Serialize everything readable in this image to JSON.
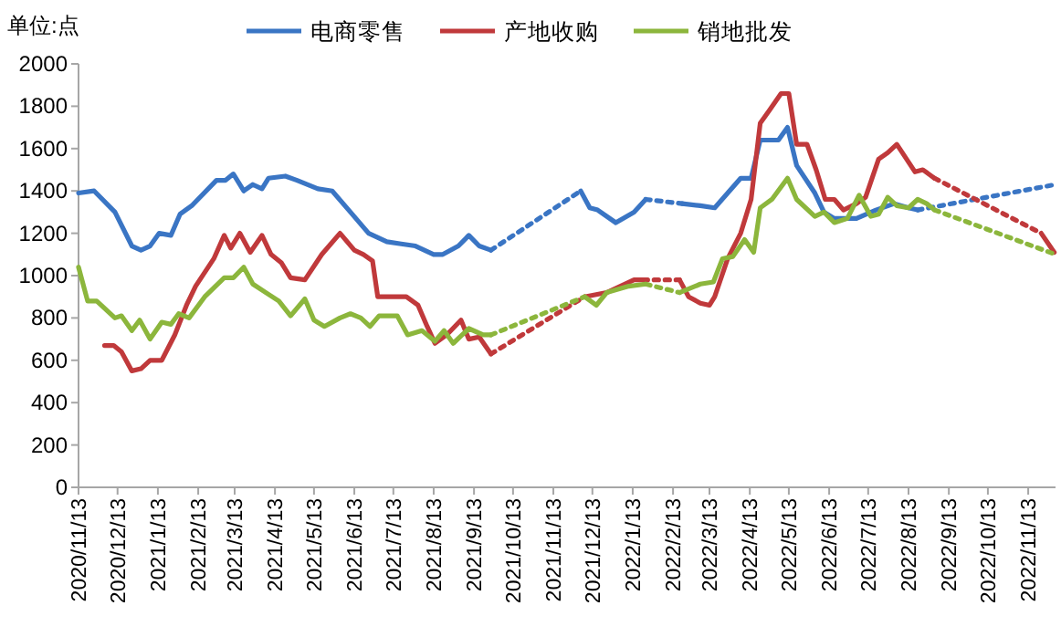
{
  "chart_data": {
    "type": "line",
    "ylabel": "单位:点",
    "legend": "top",
    "grid": false,
    "marker": "none",
    "xlim": [
      "2020-11-13",
      "2022-12-04"
    ],
    "xticks": [
      {
        "value": "2020-11-13",
        "label": "2020/11/13"
      },
      {
        "value": "2020-12-13",
        "label": "2020/12/13"
      },
      {
        "value": "2021-01-13",
        "label": "2021/1/13"
      },
      {
        "value": "2021-02-13",
        "label": "2021/2/13"
      },
      {
        "value": "2021-03-13",
        "label": "2021/3/13"
      },
      {
        "value": "2021-04-13",
        "label": "2021/4/13"
      },
      {
        "value": "2021-05-13",
        "label": "2021/5/13"
      },
      {
        "value": "2021-06-13",
        "label": "2021/6/13"
      },
      {
        "value": "2021-07-13",
        "label": "2021/7/13"
      },
      {
        "value": "2021-08-13",
        "label": "2021/8/13"
      },
      {
        "value": "2021-09-13",
        "label": "2021/9/13"
      },
      {
        "value": "2021-10-13",
        "label": "2021/10/13"
      },
      {
        "value": "2021-11-13",
        "label": "2021/11/13"
      },
      {
        "value": "2021-12-13",
        "label": "2021/12/13"
      },
      {
        "value": "2022-01-13",
        "label": "2022/1/13"
      },
      {
        "value": "2022-02-13",
        "label": "2022/2/13"
      },
      {
        "value": "2022-03-13",
        "label": "2022/3/13"
      },
      {
        "value": "2022-04-13",
        "label": "2022/4/13"
      },
      {
        "value": "2022-05-13",
        "label": "2022/5/13"
      },
      {
        "value": "2022-06-13",
        "label": "2022/6/13"
      },
      {
        "value": "2022-07-13",
        "label": "2022/7/13"
      },
      {
        "value": "2022-08-13",
        "label": "2022/8/13"
      },
      {
        "value": "2022-09-13",
        "label": "2022/9/13"
      },
      {
        "value": "2022-10-13",
        "label": "2022/10/13"
      },
      {
        "value": "2022-11-13",
        "label": "2022/11/13"
      }
    ],
    "ylim": [
      0,
      2000
    ],
    "yticks": [
      0,
      200,
      400,
      600,
      800,
      1000,
      1200,
      1400,
      1600,
      1800,
      2000
    ],
    "series": [
      {
        "name": "电商零售",
        "color": "#3a75c4",
        "line_style": "solid",
        "x": [
          "2020-11-13",
          "2020-11-25",
          "2020-12-11",
          "2020-12-24",
          "2020-12-31",
          "2021-01-07",
          "2021-01-14",
          "2021-01-23",
          "2021-01-30",
          "2021-02-08",
          "2021-02-27",
          "2021-03-06",
          "2021-03-12",
          "2021-03-20",
          "2021-03-27",
          "2021-04-03",
          "2021-04-08",
          "2021-04-21",
          "2021-04-30",
          "2021-05-16",
          "2021-05-27",
          "2021-06-10",
          "2021-06-24",
          "2021-07-08",
          "2021-07-19",
          "2021-07-30",
          "2021-08-13",
          "2021-08-20",
          "2021-09-01",
          "2021-09-09",
          "2021-09-17",
          "2021-09-26"
        ],
        "values": [
          1390,
          1400,
          1300,
          1140,
          1120,
          1140,
          1200,
          1190,
          1290,
          1330,
          1450,
          1450,
          1480,
          1400,
          1430,
          1410,
          1460,
          1470,
          1450,
          1410,
          1400,
          1300,
          1200,
          1160,
          1150,
          1140,
          1100,
          1100,
          1140,
          1190,
          1140,
          1120
        ]
      },
      {
        "color": "#3a75c4",
        "line_style": "solid",
        "x": [
          "2021-12-04",
          "2021-12-11",
          "2021-12-17",
          "2021-12-31",
          "2022-01-14",
          "2022-01-23"
        ],
        "values": [
          1400,
          1320,
          1310,
          1250,
          1300,
          1360
        ]
      },
      {
        "color": "#3a75c4",
        "line_style": "solid",
        "x": [
          "2022-02-20",
          "2022-03-06",
          "2022-03-17",
          "2022-03-27",
          "2022-04-06",
          "2022-04-14",
          "2022-04-21",
          "2022-05-05",
          "2022-05-12",
          "2022-05-19",
          "2022-06-02",
          "2022-06-09",
          "2022-06-17",
          "2022-07-04",
          "2022-07-19",
          "2022-08-02",
          "2022-08-13",
          "2022-08-20"
        ],
        "values": [
          1340,
          1330,
          1320,
          1390,
          1460,
          1460,
          1640,
          1640,
          1700,
          1520,
          1390,
          1300,
          1270,
          1270,
          1310,
          1340,
          1320,
          1310
        ]
      },
      {
        "color": "#3a75c4",
        "line_style": "dotted",
        "x": [
          "2021-09-26",
          "2021-12-04"
        ],
        "values": [
          1120,
          1400
        ]
      },
      {
        "color": "#3a75c4",
        "line_style": "dotted",
        "x": [
          "2022-01-23",
          "2022-02-20"
        ],
        "values": [
          1360,
          1340
        ]
      },
      {
        "color": "#3a75c4",
        "line_style": "dotted",
        "x": [
          "2022-08-20",
          "2022-12-04"
        ],
        "values": [
          1310,
          1430
        ]
      },
      {
        "name": "产地收购",
        "color": "#c0393b",
        "line_style": "solid",
        "x": [
          "2020-12-03",
          "2020-12-10",
          "2020-12-16",
          "2020-12-24",
          "2020-12-31",
          "2021-01-07",
          "2021-01-16",
          "2021-01-26",
          "2021-02-04",
          "2021-02-11",
          "2021-02-25",
          "2021-03-05",
          "2021-03-10",
          "2021-03-17",
          "2021-03-25",
          "2021-04-03",
          "2021-04-10",
          "2021-04-18",
          "2021-04-25",
          "2021-05-06",
          "2021-05-19",
          "2021-06-02",
          "2021-06-13",
          "2021-06-20",
          "2021-06-27",
          "2021-07-01",
          "2021-07-14",
          "2021-07-23",
          "2021-08-01",
          "2021-08-08",
          "2021-08-14",
          "2021-08-23",
          "2021-09-03",
          "2021-09-09",
          "2021-09-17",
          "2021-09-26"
        ],
        "values": [
          670,
          670,
          640,
          550,
          560,
          600,
          600,
          720,
          860,
          950,
          1080,
          1190,
          1130,
          1200,
          1110,
          1190,
          1100,
          1060,
          990,
          980,
          1100,
          1200,
          1120,
          1100,
          1070,
          900,
          900,
          900,
          860,
          760,
          680,
          720,
          790,
          700,
          710,
          630
        ]
      },
      {
        "color": "#c0393b",
        "line_style": "solid",
        "x": [
          "2021-12-07",
          "2021-12-24",
          "2022-01-14",
          "2022-01-21"
        ],
        "values": [
          900,
          920,
          980,
          980
        ]
      },
      {
        "color": "#c0393b",
        "line_style": "solid",
        "x": [
          "2022-02-18",
          "2022-02-25",
          "2022-03-06",
          "2022-03-13",
          "2022-03-17",
          "2022-03-27",
          "2022-04-06",
          "2022-04-14",
          "2022-04-21",
          "2022-04-28",
          "2022-05-07",
          "2022-05-13",
          "2022-05-19",
          "2022-05-27",
          "2022-06-03",
          "2022-06-10",
          "2022-06-17",
          "2022-06-24",
          "2022-07-04",
          "2022-07-11",
          "2022-07-21",
          "2022-07-28",
          "2022-08-04",
          "2022-08-18",
          "2022-08-24",
          "2022-09-02"
        ],
        "values": [
          980,
          900,
          870,
          860,
          900,
          1080,
          1200,
          1360,
          1720,
          1780,
          1860,
          1860,
          1620,
          1620,
          1500,
          1360,
          1360,
          1310,
          1340,
          1370,
          1550,
          1580,
          1620,
          1490,
          1500,
          1460
        ]
      },
      {
        "color": "#c0393b",
        "line_style": "solid",
        "x": [
          "2022-11-23",
          "2022-12-03"
        ],
        "values": [
          1200,
          1110
        ]
      },
      {
        "color": "#c0393b",
        "line_style": "dotted",
        "x": [
          "2021-09-26",
          "2021-12-07"
        ],
        "values": [
          630,
          900
        ]
      },
      {
        "color": "#c0393b",
        "line_style": "dotted",
        "x": [
          "2022-01-21",
          "2022-02-18"
        ],
        "values": [
          980,
          980
        ]
      },
      {
        "color": "#c0393b",
        "line_style": "dotted",
        "x": [
          "2022-09-02",
          "2022-11-23"
        ],
        "values": [
          1460,
          1200
        ]
      },
      {
        "name": "销地批发",
        "color": "#8cb63c",
        "line_style": "solid",
        "x": [
          "2020-11-13",
          "2020-11-20",
          "2020-11-27",
          "2020-12-11",
          "2020-12-16",
          "2020-12-24",
          "2020-12-30",
          "2021-01-07",
          "2021-01-16",
          "2021-01-23",
          "2021-01-29",
          "2021-02-06",
          "2021-02-18",
          "2021-03-05",
          "2021-03-12",
          "2021-03-20",
          "2021-03-27",
          "2021-04-06",
          "2021-04-16",
          "2021-04-25",
          "2021-05-06",
          "2021-05-13",
          "2021-05-21",
          "2021-06-02",
          "2021-06-10",
          "2021-06-18",
          "2021-06-25",
          "2021-07-02",
          "2021-07-16",
          "2021-07-24",
          "2021-08-04",
          "2021-08-14",
          "2021-08-21",
          "2021-08-28",
          "2021-09-09",
          "2021-09-20",
          "2021-09-26"
        ],
        "values": [
          1040,
          880,
          880,
          800,
          810,
          740,
          790,
          700,
          780,
          770,
          820,
          800,
          900,
          990,
          990,
          1040,
          960,
          920,
          880,
          810,
          890,
          790,
          760,
          800,
          820,
          800,
          760,
          810,
          810,
          720,
          740,
          690,
          740,
          680,
          750,
          720,
          720
        ]
      },
      {
        "color": "#8cb63c",
        "line_style": "solid",
        "x": [
          "2021-12-07",
          "2021-12-16",
          "2021-12-24",
          "2022-01-10",
          "2022-01-23"
        ],
        "values": [
          900,
          860,
          920,
          950,
          960
        ]
      },
      {
        "color": "#8cb63c",
        "line_style": "solid",
        "x": [
          "2022-02-18",
          "2022-03-06",
          "2022-03-16",
          "2022-03-23",
          "2022-03-31",
          "2022-04-09",
          "2022-04-16",
          "2022-04-21",
          "2022-04-30",
          "2022-05-12",
          "2022-05-19",
          "2022-06-02",
          "2022-06-09",
          "2022-06-17",
          "2022-06-27",
          "2022-07-06",
          "2022-07-15",
          "2022-07-21",
          "2022-07-28",
          "2022-08-04",
          "2022-08-13",
          "2022-08-20",
          "2022-08-27",
          "2022-09-02"
        ],
        "values": [
          920,
          960,
          970,
          1080,
          1090,
          1170,
          1110,
          1320,
          1360,
          1460,
          1360,
          1280,
          1300,
          1250,
          1270,
          1380,
          1280,
          1290,
          1370,
          1330,
          1320,
          1360,
          1340,
          1310
        ]
      },
      {
        "color": "#8cb63c",
        "line_style": "dotted",
        "x": [
          "2021-09-26",
          "2021-12-07"
        ],
        "values": [
          720,
          900
        ]
      },
      {
        "color": "#8cb63c",
        "line_style": "dotted",
        "x": [
          "2022-01-23",
          "2022-02-18"
        ],
        "values": [
          960,
          920
        ]
      },
      {
        "color": "#8cb63c",
        "line_style": "dotted",
        "x": [
          "2022-09-02",
          "2022-12-04"
        ],
        "values": [
          1310,
          1100
        ]
      }
    ]
  }
}
